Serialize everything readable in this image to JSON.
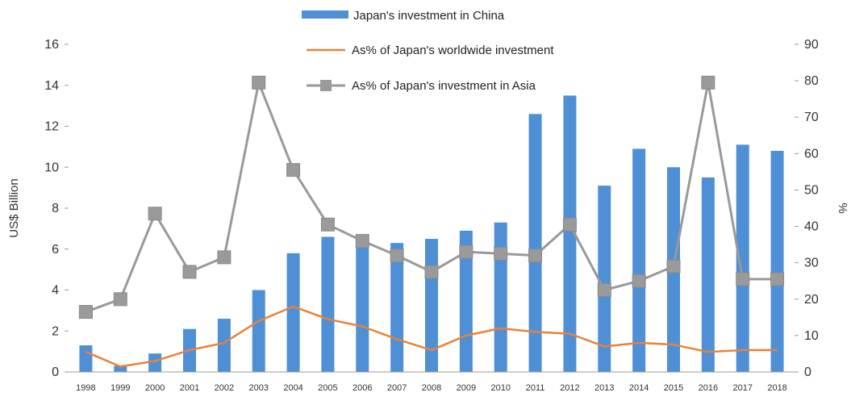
{
  "chart_data": {
    "type": "bar",
    "categories": [
      "1998",
      "1999",
      "2000",
      "2001",
      "2002",
      "2003",
      "2004",
      "2005",
      "2006",
      "2007",
      "2008",
      "2009",
      "2010",
      "2011",
      "2012",
      "2013",
      "2014",
      "2015",
      "2016",
      "2017",
      "2018"
    ],
    "ylabel": "US$ Billion",
    "y2label": "%",
    "ylim": [
      0,
      16
    ],
    "y2lim": [
      0,
      90
    ],
    "yticks": [
      "0",
      "2",
      "4",
      "6",
      "8",
      "10",
      "12",
      "14",
      "16"
    ],
    "y2ticks": [
      "0",
      "10",
      "20",
      "30",
      "40",
      "50",
      "60",
      "70",
      "80",
      "90"
    ],
    "legend_position": "top-center",
    "grid": false,
    "series": [
      {
        "name": "Japan's investment in China",
        "type": "bar",
        "axis": "left",
        "color": "#4f8fd5",
        "values": [
          1.3,
          0.3,
          0.9,
          2.1,
          2.6,
          4.0,
          5.8,
          6.6,
          6.3,
          6.3,
          6.5,
          6.9,
          7.3,
          12.6,
          13.5,
          9.1,
          10.9,
          10.0,
          9.5,
          11.1,
          10.8
        ]
      },
      {
        "name": "As% of Japan's worldwide investment",
        "type": "line",
        "axis": "right",
        "color": "#e8823a",
        "values": [
          5.5,
          1.5,
          3.0,
          6.0,
          8.0,
          14.0,
          18.0,
          14.5,
          12.5,
          9.0,
          6.0,
          10.0,
          12.0,
          11.0,
          10.5,
          7.0,
          8.0,
          7.5,
          5.5,
          6.0,
          6.0
        ]
      },
      {
        "name": "As% of Japan's investment in Asia",
        "type": "line",
        "axis": "right",
        "color": "#999999",
        "values": [
          16.5,
          20.0,
          43.5,
          27.5,
          31.5,
          79.5,
          55.5,
          40.5,
          36.0,
          32.0,
          27.5,
          33.0,
          32.5,
          32.0,
          40.5,
          22.5,
          25.0,
          29.0,
          79.5,
          25.5,
          25.5
        ]
      }
    ]
  }
}
